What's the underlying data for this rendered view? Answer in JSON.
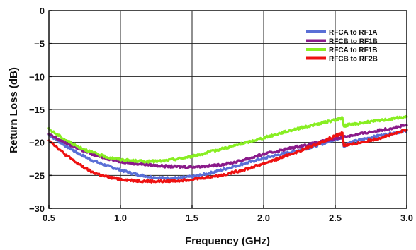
{
  "chart_data": {
    "type": "line",
    "title": "",
    "xlabel": "Frequency (GHz)",
    "ylabel": "Return Loss (dB)",
    "xlim": [
      0.5,
      3.0
    ],
    "ylim": [
      -30,
      0
    ],
    "x_ticks": [
      "0.5",
      "1.0",
      "1.5",
      "2.0",
      "2.5",
      "3.0"
    ],
    "y_ticks": [
      "0",
      "−5",
      "−10",
      "−15",
      "−20",
      "−25",
      "−30"
    ],
    "grid": true,
    "legend_position": "top-right",
    "series": [
      {
        "name": "RFCA to RF1A",
        "color": "#5a6fd6",
        "x": [
          0.5,
          0.6,
          0.7,
          0.8,
          0.9,
          1.0,
          1.1,
          1.2,
          1.3,
          1.4,
          1.5,
          1.6,
          1.7,
          1.8,
          1.9,
          2.0,
          2.1,
          2.2,
          2.3,
          2.4,
          2.5,
          2.55,
          2.56,
          2.6,
          2.7,
          2.8,
          2.9,
          3.0
        ],
        "values": [
          -18.8,
          -20.3,
          -21.6,
          -22.7,
          -23.5,
          -24.2,
          -24.8,
          -25.2,
          -25.4,
          -25.4,
          -25.2,
          -24.8,
          -24.2,
          -23.6,
          -23.0,
          -22.4,
          -21.9,
          -21.4,
          -20.9,
          -20.3,
          -19.5,
          -19.2,
          -20.6,
          -20.0,
          -19.5,
          -19.0,
          -18.6,
          -18.2
        ]
      },
      {
        "name": "RFCB to RF1B",
        "color": "#8a1a8a",
        "x": [
          0.5,
          0.6,
          0.7,
          0.8,
          0.9,
          1.0,
          1.1,
          1.2,
          1.3,
          1.4,
          1.5,
          1.6,
          1.7,
          1.8,
          1.9,
          2.0,
          2.1,
          2.2,
          2.3,
          2.4,
          2.5,
          2.6,
          2.7,
          2.8,
          2.9,
          3.0
        ],
        "values": [
          -18.8,
          -19.9,
          -20.9,
          -21.8,
          -22.4,
          -22.9,
          -23.2,
          -23.4,
          -23.6,
          -23.7,
          -23.7,
          -23.6,
          -23.4,
          -23.0,
          -22.4,
          -21.8,
          -21.3,
          -20.8,
          -20.4,
          -19.9,
          -19.4,
          -19.0,
          -18.6,
          -18.2,
          -17.8,
          -17.4
        ]
      },
      {
        "name": "RFCA to RF1B",
        "color": "#88ee22",
        "x": [
          0.5,
          0.6,
          0.7,
          0.8,
          0.9,
          1.0,
          1.1,
          1.2,
          1.3,
          1.4,
          1.5,
          1.6,
          1.7,
          1.8,
          1.9,
          2.0,
          2.1,
          2.2,
          2.3,
          2.4,
          2.5,
          2.55,
          2.56,
          2.6,
          2.7,
          2.8,
          2.9,
          3.0
        ],
        "values": [
          -18.0,
          -19.4,
          -20.6,
          -21.5,
          -22.2,
          -22.6,
          -22.8,
          -22.9,
          -22.8,
          -22.5,
          -22.1,
          -21.6,
          -21.0,
          -20.5,
          -19.9,
          -19.3,
          -18.7,
          -18.1,
          -17.6,
          -17.1,
          -16.6,
          -16.3,
          -17.5,
          -17.3,
          -17.0,
          -16.7,
          -16.4,
          -16.1
        ]
      },
      {
        "name": "RFCB to RF2B",
        "color": "#ee1111",
        "x": [
          0.5,
          0.6,
          0.7,
          0.8,
          0.9,
          1.0,
          1.1,
          1.2,
          1.3,
          1.4,
          1.5,
          1.6,
          1.7,
          1.8,
          1.9,
          2.0,
          2.1,
          2.2,
          2.3,
          2.4,
          2.5,
          2.55,
          2.56,
          2.6,
          2.7,
          2.8,
          2.9,
          3.0
        ],
        "values": [
          -19.6,
          -21.6,
          -23.2,
          -24.5,
          -25.2,
          -25.6,
          -25.8,
          -25.9,
          -25.9,
          -25.8,
          -25.6,
          -25.3,
          -25.0,
          -24.5,
          -23.9,
          -23.2,
          -22.5,
          -21.7,
          -20.9,
          -20.0,
          -19.0,
          -18.6,
          -20.4,
          -20.4,
          -19.9,
          -19.4,
          -18.8,
          -18.1
        ]
      }
    ]
  }
}
